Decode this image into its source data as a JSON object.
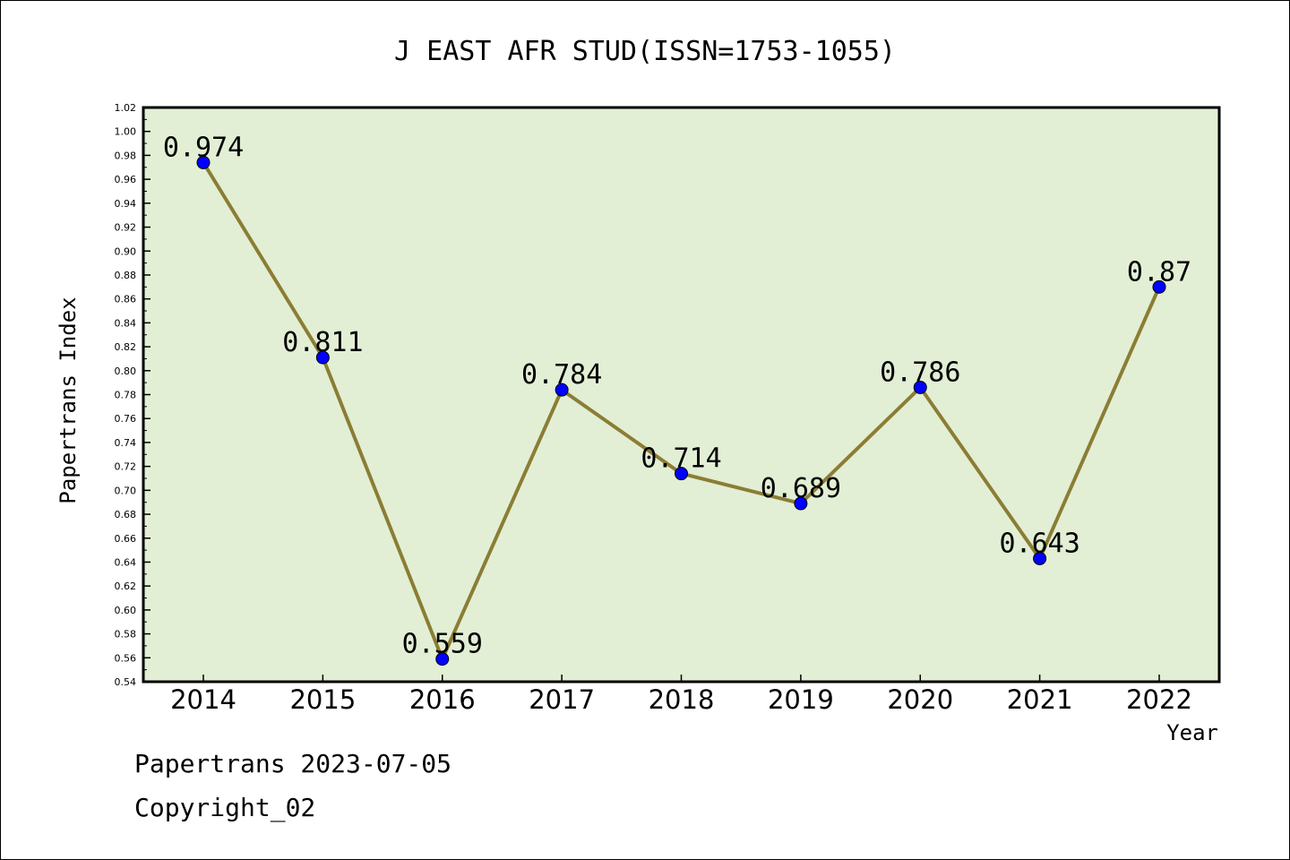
{
  "chart_data": {
    "type": "line",
    "title": "J EAST AFR STUD(ISSN=1753-1055)",
    "xlabel": "Year",
    "ylabel": "Papertrans Index",
    "categories": [
      "2014",
      "2015",
      "2016",
      "2017",
      "2018",
      "2019",
      "2020",
      "2021",
      "2022"
    ],
    "series": [
      {
        "values": [
          0.974,
          0.811,
          0.559,
          0.784,
          0.714,
          0.689,
          0.786,
          0.643,
          0.87
        ],
        "data_labels": [
          "0.974",
          "0.811",
          "0.559",
          "0.784",
          "0.714",
          "0.689",
          "0.786",
          "0.643",
          "0.87"
        ]
      }
    ],
    "ylim": [
      0.54,
      1.02
    ],
    "yticks": [
      "0.54",
      "0.56",
      "0.58",
      "0.60",
      "0.62",
      "0.64",
      "0.66",
      "0.68",
      "0.70",
      "0.72",
      "0.74",
      "0.76",
      "0.78",
      "0.80",
      "0.82",
      "0.84",
      "0.86",
      "0.88",
      "0.90",
      "0.92",
      "0.94",
      "0.96",
      "0.98",
      "1.00",
      "1.02"
    ],
    "grid": false,
    "colors": {
      "plot_background": "#e2efd5",
      "line": "#8b7d34",
      "marker": "#0000ff"
    }
  },
  "footer": {
    "line1": "Papertrans 2023-07-05",
    "line2": "Copyright_02"
  }
}
